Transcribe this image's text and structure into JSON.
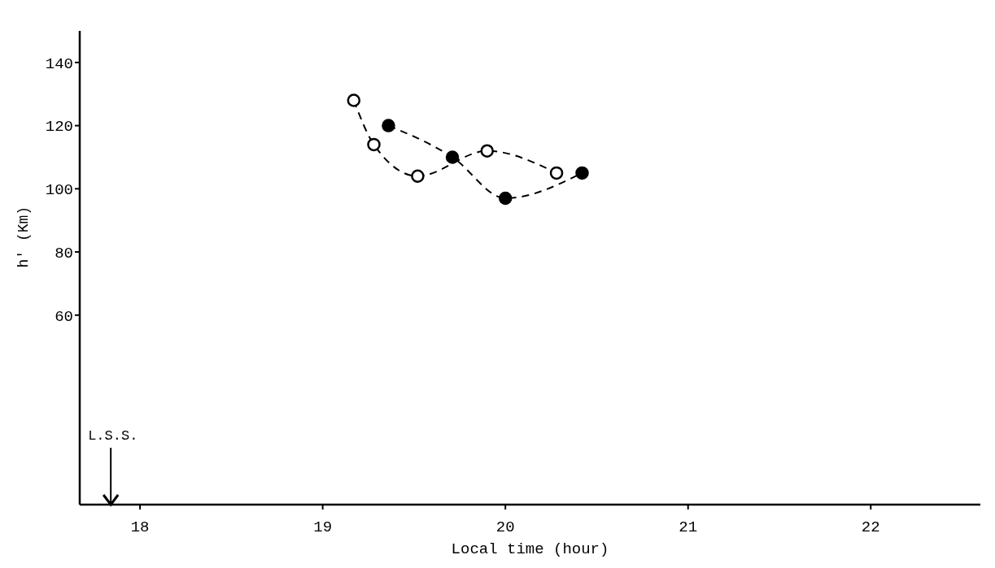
{
  "chart_data": {
    "type": "line",
    "xlabel": "Local time (hour)",
    "ylabel": "h' (Km)",
    "xlim": [
      17.67,
      22.6
    ],
    "xticks": [
      18,
      19,
      20,
      21,
      22
    ],
    "ylim": [
      0,
      150
    ],
    "yticks": [
      60,
      80,
      100,
      120,
      140
    ],
    "grid": false,
    "legend": false,
    "marker": "circle",
    "line_style": "dashed",
    "series": [
      {
        "color": "#000000",
        "x": [
          19.17,
          19.28,
          19.52,
          19.9,
          20.28
        ],
        "values": [
          128,
          114,
          104,
          112,
          105
        ]
      },
      {
        "color": "#000000",
        "x": [
          19.36,
          19.71,
          20.0,
          20.42
        ],
        "values": [
          120,
          110,
          97,
          105
        ]
      }
    ],
    "ref_lines": [
      {
        "axis": "x",
        "value": 17.84,
        "label": "L.S.S."
      }
    ]
  }
}
